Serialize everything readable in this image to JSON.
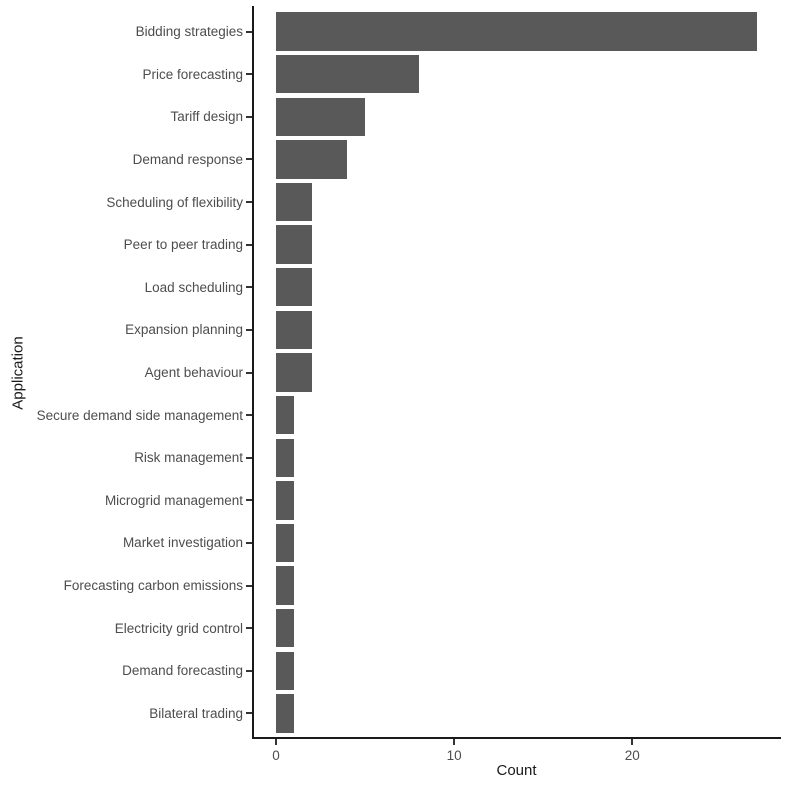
{
  "chart_data": {
    "type": "bar",
    "orientation": "horizontal",
    "title": "",
    "xlabel": "Count",
    "ylabel": "Application",
    "categories": [
      "Bidding strategies",
      "Price forecasting",
      "Tariff design",
      "Demand response",
      "Scheduling of flexibility",
      "Peer to peer trading",
      "Load scheduling",
      "Expansion planning",
      "Agent behaviour",
      "Secure demand side management",
      "Risk management",
      "Microgrid management",
      "Market investigation",
      "Forecasting carbon emissions",
      "Electricity grid control",
      "Demand forecasting",
      "Bilateral trading"
    ],
    "values": [
      27,
      8,
      5,
      4,
      2,
      2,
      2,
      2,
      2,
      1,
      1,
      1,
      1,
      1,
      1,
      1,
      1
    ],
    "x_ticks": [
      0,
      10,
      20
    ],
    "xlim": [
      0,
      27
    ],
    "grid": "off",
    "legend": "none",
    "colors": {
      "bar_fill": "#595959",
      "axis_text": "#4d4d4d",
      "axis_title": "#1a1a1a",
      "axis_line": "#1a1a1a",
      "tick_mark": "#333333",
      "background": "#ffffff"
    }
  }
}
